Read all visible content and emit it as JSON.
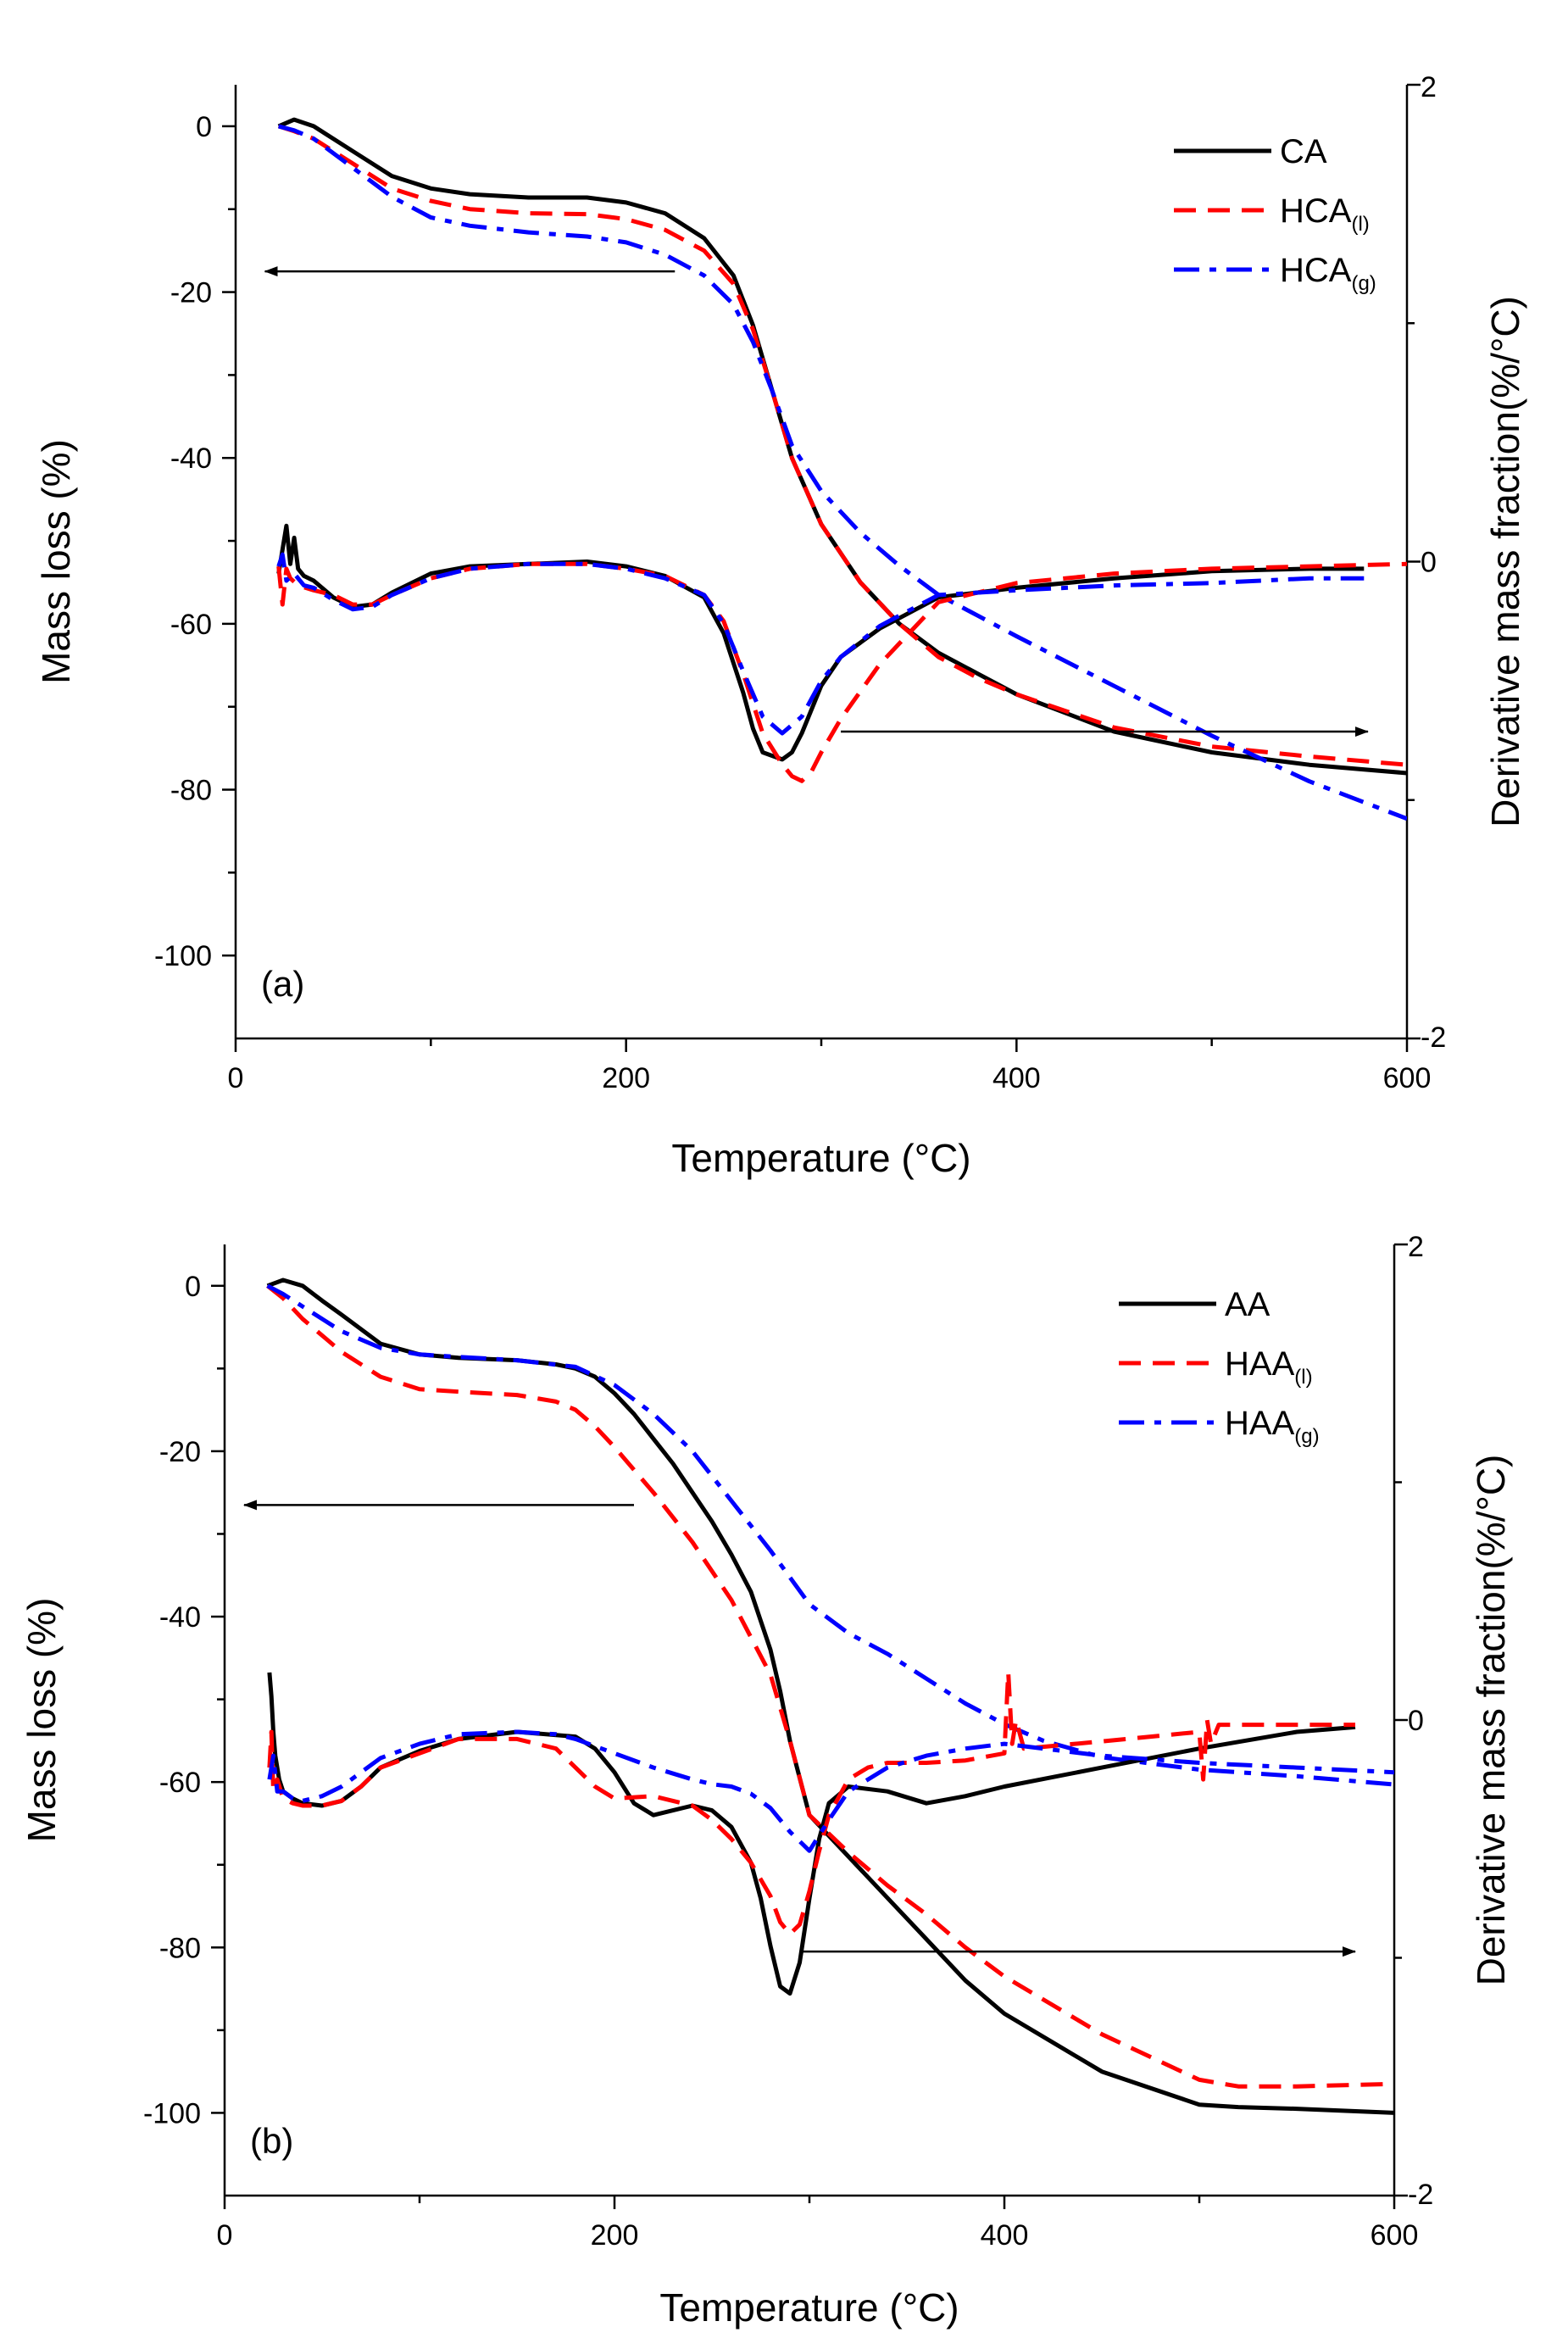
{
  "chart_data": [
    {
      "type": "line",
      "panel_label": "(a)",
      "xlabel": "Temperature (°C)",
      "ylabel": "Mass loss (%)",
      "y2label": "Derivative mass fraction(%/°C)",
      "xlim": [
        0,
        600
      ],
      "ylim": [
        -110,
        5
      ],
      "y2lim": [
        -2,
        2
      ],
      "x_ticks": [
        0,
        200,
        400,
        600
      ],
      "y_ticks": [
        0,
        -20,
        -40,
        -60,
        -80,
        -100
      ],
      "y2_ticks": [
        2,
        0,
        -2
      ],
      "legend_position": "top-right",
      "arrows": [
        {
          "direction": "left",
          "axis": "left",
          "from": [
            225,
            -17.5
          ],
          "to": [
            15,
            -17.5
          ]
        },
        {
          "direction": "right",
          "axis": "left",
          "from": [
            310,
            -73
          ],
          "to": [
            580,
            -73
          ]
        }
      ],
      "series": [
        {
          "name": "CA",
          "sub": "",
          "color": "#000000",
          "dash": "solid",
          "kind": "mass",
          "x": [
            22,
            30,
            40,
            60,
            80,
            100,
            120,
            150,
            180,
            200,
            220,
            240,
            255,
            265,
            275,
            285,
            300,
            320,
            340,
            360,
            380,
            400,
            450,
            500,
            550,
            600
          ],
          "y": [
            0,
            0.8,
            0,
            -3,
            -6,
            -7.5,
            -8.2,
            -8.6,
            -8.6,
            -9.2,
            -10.5,
            -13.5,
            -18,
            -24,
            -32,
            -40,
            -48,
            -55,
            -60,
            -63.5,
            -66,
            -68.5,
            -73,
            -75.5,
            -77,
            -78
          ]
        },
        {
          "name": "HCA",
          "sub": "(l)",
          "color": "#ff0000",
          "dash": "dash",
          "kind": "mass",
          "x": [
            22,
            30,
            40,
            60,
            80,
            100,
            120,
            150,
            180,
            200,
            220,
            240,
            255,
            265,
            275,
            285,
            300,
            320,
            340,
            360,
            380,
            400,
            450,
            500,
            550,
            600
          ],
          "y": [
            0,
            -0.6,
            -1.5,
            -4.5,
            -7.5,
            -9,
            -10,
            -10.5,
            -10.6,
            -11.2,
            -12.5,
            -15,
            -19,
            -24.5,
            -32,
            -40,
            -48,
            -55,
            -60,
            -64,
            -66.5,
            -68.5,
            -72.5,
            -74.8,
            -76,
            -77
          ]
        },
        {
          "name": "HCA",
          "sub": "(g)",
          "color": "#0000ff",
          "dash": "dashdot",
          "kind": "mass",
          "x": [
            22,
            30,
            40,
            60,
            80,
            100,
            120,
            150,
            180,
            200,
            220,
            240,
            255,
            265,
            275,
            285,
            300,
            320,
            340,
            360,
            380,
            400,
            450,
            500,
            550,
            600
          ],
          "y": [
            0,
            -0.5,
            -1.5,
            -5,
            -8.5,
            -11,
            -12,
            -12.8,
            -13.3,
            -14,
            -15.5,
            -18,
            -21.5,
            -26,
            -32,
            -38.5,
            -44,
            -49,
            -53,
            -56.5,
            -59,
            -61.5,
            -67.5,
            -73.5,
            -79,
            -83.5
          ]
        },
        {
          "name": "CA",
          "sub": "",
          "color": "#000000",
          "dash": "solid",
          "kind": "derivative",
          "x": [
            22,
            26,
            28,
            30,
            32,
            35,
            40,
            50,
            60,
            70,
            80,
            100,
            120,
            150,
            180,
            200,
            220,
            240,
            250,
            260,
            265,
            270,
            280,
            285,
            290,
            300,
            310,
            330,
            360,
            400,
            450,
            500,
            550,
            578
          ],
          "y": [
            -0.05,
            0.15,
            -0.01,
            0.1,
            -0.03,
            -0.06,
            -0.08,
            -0.15,
            -0.19,
            -0.18,
            -0.13,
            -0.05,
            -0.02,
            -0.01,
            0,
            -0.02,
            -0.06,
            -0.15,
            -0.3,
            -0.55,
            -0.7,
            -0.8,
            -0.83,
            -0.8,
            -0.72,
            -0.52,
            -0.4,
            -0.28,
            -0.15,
            -0.11,
            -0.07,
            -0.04,
            -0.03,
            -0.03
          ]
        },
        {
          "name": "HCA",
          "sub": "(l)",
          "color": "#ff0000",
          "dash": "dash",
          "kind": "derivative",
          "x": [
            22,
            24,
            26,
            28,
            32,
            40,
            50,
            60,
            70,
            80,
            100,
            120,
            150,
            180,
            200,
            220,
            240,
            250,
            260,
            270,
            280,
            285,
            290,
            295,
            300,
            310,
            330,
            360,
            400,
            450,
            500,
            550,
            600
          ],
          "y": [
            -0.02,
            -0.18,
            -0.03,
            -0.07,
            -0.1,
            -0.12,
            -0.14,
            -0.18,
            -0.18,
            -0.14,
            -0.07,
            -0.03,
            -0.01,
            -0.01,
            -0.03,
            -0.06,
            -0.14,
            -0.25,
            -0.47,
            -0.72,
            -0.85,
            -0.9,
            -0.92,
            -0.88,
            -0.8,
            -0.66,
            -0.43,
            -0.17,
            -0.09,
            -0.05,
            -0.03,
            -0.02,
            -0.01
          ]
        },
        {
          "name": "HCA",
          "sub": "(g)",
          "color": "#0000ff",
          "dash": "dashdot",
          "kind": "derivative",
          "x": [
            22,
            24,
            26,
            30,
            35,
            40,
            50,
            60,
            70,
            80,
            100,
            120,
            150,
            180,
            200,
            220,
            240,
            250,
            260,
            270,
            280,
            290,
            300,
            310,
            330,
            360,
            400,
            450,
            500,
            550,
            578
          ],
          "y": [
            -0.02,
            0.03,
            -0.08,
            -0.05,
            -0.1,
            -0.11,
            -0.16,
            -0.2,
            -0.19,
            -0.14,
            -0.07,
            -0.03,
            -0.01,
            -0.01,
            -0.03,
            -0.07,
            -0.14,
            -0.26,
            -0.46,
            -0.65,
            -0.72,
            -0.65,
            -0.5,
            -0.4,
            -0.27,
            -0.14,
            -0.12,
            -0.1,
            -0.09,
            -0.07,
            -0.07
          ]
        }
      ]
    },
    {
      "type": "line",
      "panel_label": "(b)",
      "xlabel": "Temperature (°C)",
      "ylabel": "Mass loss (%)",
      "y2label": "Derivative mass fraction(%/°C)",
      "xlim": [
        0,
        600
      ],
      "ylim": [
        -110,
        5
      ],
      "y2lim": [
        -2,
        2
      ],
      "x_ticks": [
        0,
        200,
        400,
        600
      ],
      "y_ticks": [
        0,
        -20,
        -40,
        -60,
        -80,
        -100
      ],
      "y2_ticks": [
        2,
        0,
        -2
      ],
      "legend_position": "top-right",
      "arrows": [
        {
          "direction": "left",
          "axis": "left",
          "from": [
            210,
            -26.5
          ],
          "to": [
            10,
            -26.5
          ]
        },
        {
          "direction": "right",
          "axis": "left",
          "from": [
            295,
            -80.5
          ],
          "to": [
            580,
            -80.5
          ]
        }
      ],
      "series": [
        {
          "name": "AA",
          "sub": "",
          "color": "#000000",
          "dash": "solid",
          "kind": "mass",
          "x": [
            22,
            30,
            40,
            50,
            60,
            80,
            100,
            120,
            150,
            170,
            180,
            190,
            200,
            210,
            220,
            230,
            240,
            250,
            260,
            270,
            280,
            285,
            290,
            300,
            320,
            340,
            360,
            380,
            400,
            450,
            500,
            520,
            550,
            600
          ],
          "y": [
            0,
            0.7,
            0,
            -1.8,
            -3.5,
            -7,
            -8.3,
            -8.7,
            -9,
            -9.5,
            -10,
            -11,
            -13,
            -15.5,
            -18.5,
            -21.5,
            -25,
            -28.5,
            -32.5,
            -37,
            -44,
            -49,
            -55,
            -64,
            -69,
            -74,
            -79,
            -84,
            -88,
            -95,
            -99,
            -99.3,
            -99.5,
            -100
          ]
        },
        {
          "name": "HAA",
          "sub": "(l)",
          "color": "#ff0000",
          "dash": "dash",
          "kind": "mass",
          "x": [
            22,
            30,
            40,
            60,
            80,
            100,
            120,
            150,
            170,
            180,
            190,
            200,
            220,
            240,
            260,
            280,
            290,
            300,
            320,
            340,
            360,
            380,
            400,
            450,
            500,
            520,
            550,
            600
          ],
          "y": [
            0,
            -1.5,
            -4,
            -8,
            -11,
            -12.5,
            -12.8,
            -13.2,
            -14,
            -15,
            -17,
            -19.5,
            -25,
            -31,
            -38,
            -47,
            -55,
            -64,
            -68.5,
            -72.5,
            -76,
            -80,
            -83.5,
            -90.5,
            -96,
            -96.8,
            -96.8,
            -96.5
          ]
        },
        {
          "name": "HAA",
          "sub": "(g)",
          "color": "#0000ff",
          "dash": "dashdot",
          "kind": "mass",
          "x": [
            22,
            30,
            40,
            60,
            80,
            100,
            120,
            150,
            180,
            200,
            220,
            240,
            260,
            280,
            300,
            320,
            340,
            360,
            380,
            400,
            420,
            450,
            500,
            550,
            600
          ],
          "y": [
            0,
            -1,
            -2.5,
            -5.5,
            -7.5,
            -8.3,
            -8.6,
            -9,
            -9.8,
            -12,
            -15.5,
            -20,
            -26,
            -32,
            -38.5,
            -42,
            -44.5,
            -47.5,
            -50.5,
            -53,
            -55,
            -57,
            -58.5,
            -59.3,
            -60.3
          ]
        },
        {
          "name": "AA",
          "sub": "",
          "color": "#000000",
          "dash": "solid",
          "kind": "derivative",
          "x": [
            23,
            24,
            25,
            26,
            28,
            30,
            35,
            40,
            50,
            60,
            70,
            80,
            100,
            120,
            150,
            180,
            190,
            200,
            210,
            220,
            230,
            240,
            250,
            260,
            270,
            275,
            280,
            285,
            290,
            295,
            300,
            305,
            310,
            320,
            340,
            360,
            380,
            400,
            450,
            500,
            550,
            580
          ],
          "y": [
            0.2,
            0.1,
            -0.05,
            -0.15,
            -0.25,
            -0.3,
            -0.33,
            -0.35,
            -0.36,
            -0.34,
            -0.28,
            -0.2,
            -0.13,
            -0.08,
            -0.05,
            -0.07,
            -0.12,
            -0.22,
            -0.35,
            -0.4,
            -0.38,
            -0.36,
            -0.38,
            -0.45,
            -0.6,
            -0.75,
            -0.95,
            -1.12,
            -1.15,
            -1.02,
            -0.75,
            -0.5,
            -0.35,
            -0.28,
            -0.3,
            -0.35,
            -0.32,
            -0.28,
            -0.2,
            -0.12,
            -0.05,
            -0.03
          ]
        },
        {
          "name": "HAA",
          "sub": "(l)",
          "color": "#ff0000",
          "dash": "dash",
          "kind": "derivative",
          "x": [
            23,
            24,
            25,
            27,
            30,
            35,
            40,
            50,
            60,
            70,
            80,
            100,
            120,
            150,
            170,
            180,
            190,
            200,
            220,
            240,
            250,
            260,
            270,
            280,
            285,
            290,
            295,
            300,
            305,
            310,
            320,
            330,
            340,
            360,
            380,
            400,
            402,
            404,
            406,
            410,
            450,
            500,
            502,
            504,
            506,
            510,
            550,
            580
          ],
          "y": [
            -0.2,
            -0.05,
            -0.3,
            -0.25,
            -0.33,
            -0.35,
            -0.36,
            -0.36,
            -0.34,
            -0.28,
            -0.2,
            -0.14,
            -0.08,
            -0.08,
            -0.12,
            -0.2,
            -0.28,
            -0.33,
            -0.32,
            -0.36,
            -0.42,
            -0.5,
            -0.6,
            -0.74,
            -0.85,
            -0.9,
            -0.86,
            -0.72,
            -0.55,
            -0.4,
            -0.25,
            -0.2,
            -0.18,
            -0.18,
            -0.17,
            -0.14,
            0.2,
            -0.1,
            0.0,
            -0.12,
            -0.09,
            -0.05,
            -0.25,
            0.0,
            -0.1,
            -0.02,
            -0.02,
            -0.02
          ]
        },
        {
          "name": "HAA",
          "sub": "(g)",
          "color": "#0000ff",
          "dash": "dashdot",
          "kind": "derivative",
          "x": [
            23,
            25,
            27,
            30,
            35,
            40,
            50,
            60,
            70,
            80,
            100,
            120,
            150,
            170,
            180,
            200,
            220,
            240,
            250,
            260,
            270,
            280,
            290,
            300,
            310,
            320,
            340,
            360,
            380,
            400,
            420,
            450,
            500,
            550,
            600
          ],
          "y": [
            -0.25,
            -0.15,
            -0.3,
            -0.3,
            -0.33,
            -0.34,
            -0.32,
            -0.28,
            -0.22,
            -0.16,
            -0.1,
            -0.06,
            -0.05,
            -0.06,
            -0.08,
            -0.14,
            -0.2,
            -0.25,
            -0.27,
            -0.28,
            -0.31,
            -0.37,
            -0.47,
            -0.55,
            -0.42,
            -0.3,
            -0.2,
            -0.15,
            -0.12,
            -0.1,
            -0.12,
            -0.15,
            -0.18,
            -0.2,
            -0.22
          ]
        }
      ]
    }
  ]
}
